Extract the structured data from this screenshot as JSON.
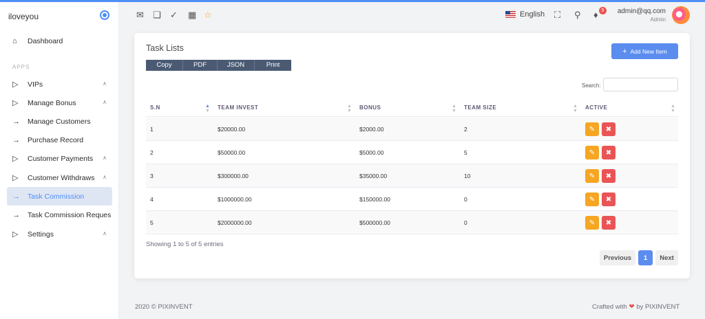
{
  "brand": {
    "name": "iloveyou"
  },
  "sidebar": {
    "dashboard": "Dashboard",
    "section": "APPS",
    "items": [
      {
        "label": "VIPs",
        "icon": "play-outline-icon",
        "chevron": true
      },
      {
        "label": "Manage Bonus",
        "icon": "play-outline-icon",
        "chevron": true
      },
      {
        "label": "Manage Customers",
        "icon": "arrow-right-icon",
        "chevron": false
      },
      {
        "label": "Purchase Record",
        "icon": "arrow-right-icon",
        "chevron": false
      },
      {
        "label": "Customer Payments",
        "icon": "play-outline-icon",
        "chevron": true
      },
      {
        "label": "Customer Withdraws",
        "icon": "play-outline-icon",
        "chevron": true
      },
      {
        "label": "Task Commission",
        "icon": "arrow-right-icon",
        "chevron": false,
        "active": true
      },
      {
        "label": "Task Commission Reques",
        "icon": "arrow-right-icon",
        "chevron": false
      },
      {
        "label": "Settings",
        "icon": "play-outline-icon",
        "chevron": true
      }
    ]
  },
  "header": {
    "language": "English",
    "notifications": "5",
    "user_email": "admin@qq.com",
    "user_role": "Admin"
  },
  "card": {
    "title": "Task Lists",
    "add_button": "Add New Item",
    "exports": [
      "Copy",
      "PDF",
      "JSON",
      "Print"
    ],
    "search_label": "Search:",
    "search_value": ""
  },
  "table": {
    "columns": [
      "S.N",
      "TEAM INVEST",
      "BONUS",
      "TEAM SIZE",
      "ACTIVE"
    ],
    "rows": [
      [
        "1",
        "$20000.00",
        "$2000.00",
        "2"
      ],
      [
        "2",
        "$50000.00",
        "$5000.00",
        "5"
      ],
      [
        "3",
        "$300000.00",
        "$35000.00",
        "10"
      ],
      [
        "4",
        "$1000000.00",
        "$150000.00",
        "0"
      ],
      [
        "5",
        "$2000000.00",
        "$500000.00",
        "0"
      ]
    ]
  },
  "pagination": {
    "info": "Showing 1 to 5 of 5 entries",
    "previous": "Previous",
    "current": "1",
    "next": "Next"
  },
  "footer": {
    "left": "2020 © PIXINVENT",
    "right_prefix": "Crafted with",
    "right_suffix": "by PIXINVENT"
  },
  "colors": {
    "primary": "#5b8def",
    "edit": "#f6a623",
    "delete": "#ea5455"
  }
}
